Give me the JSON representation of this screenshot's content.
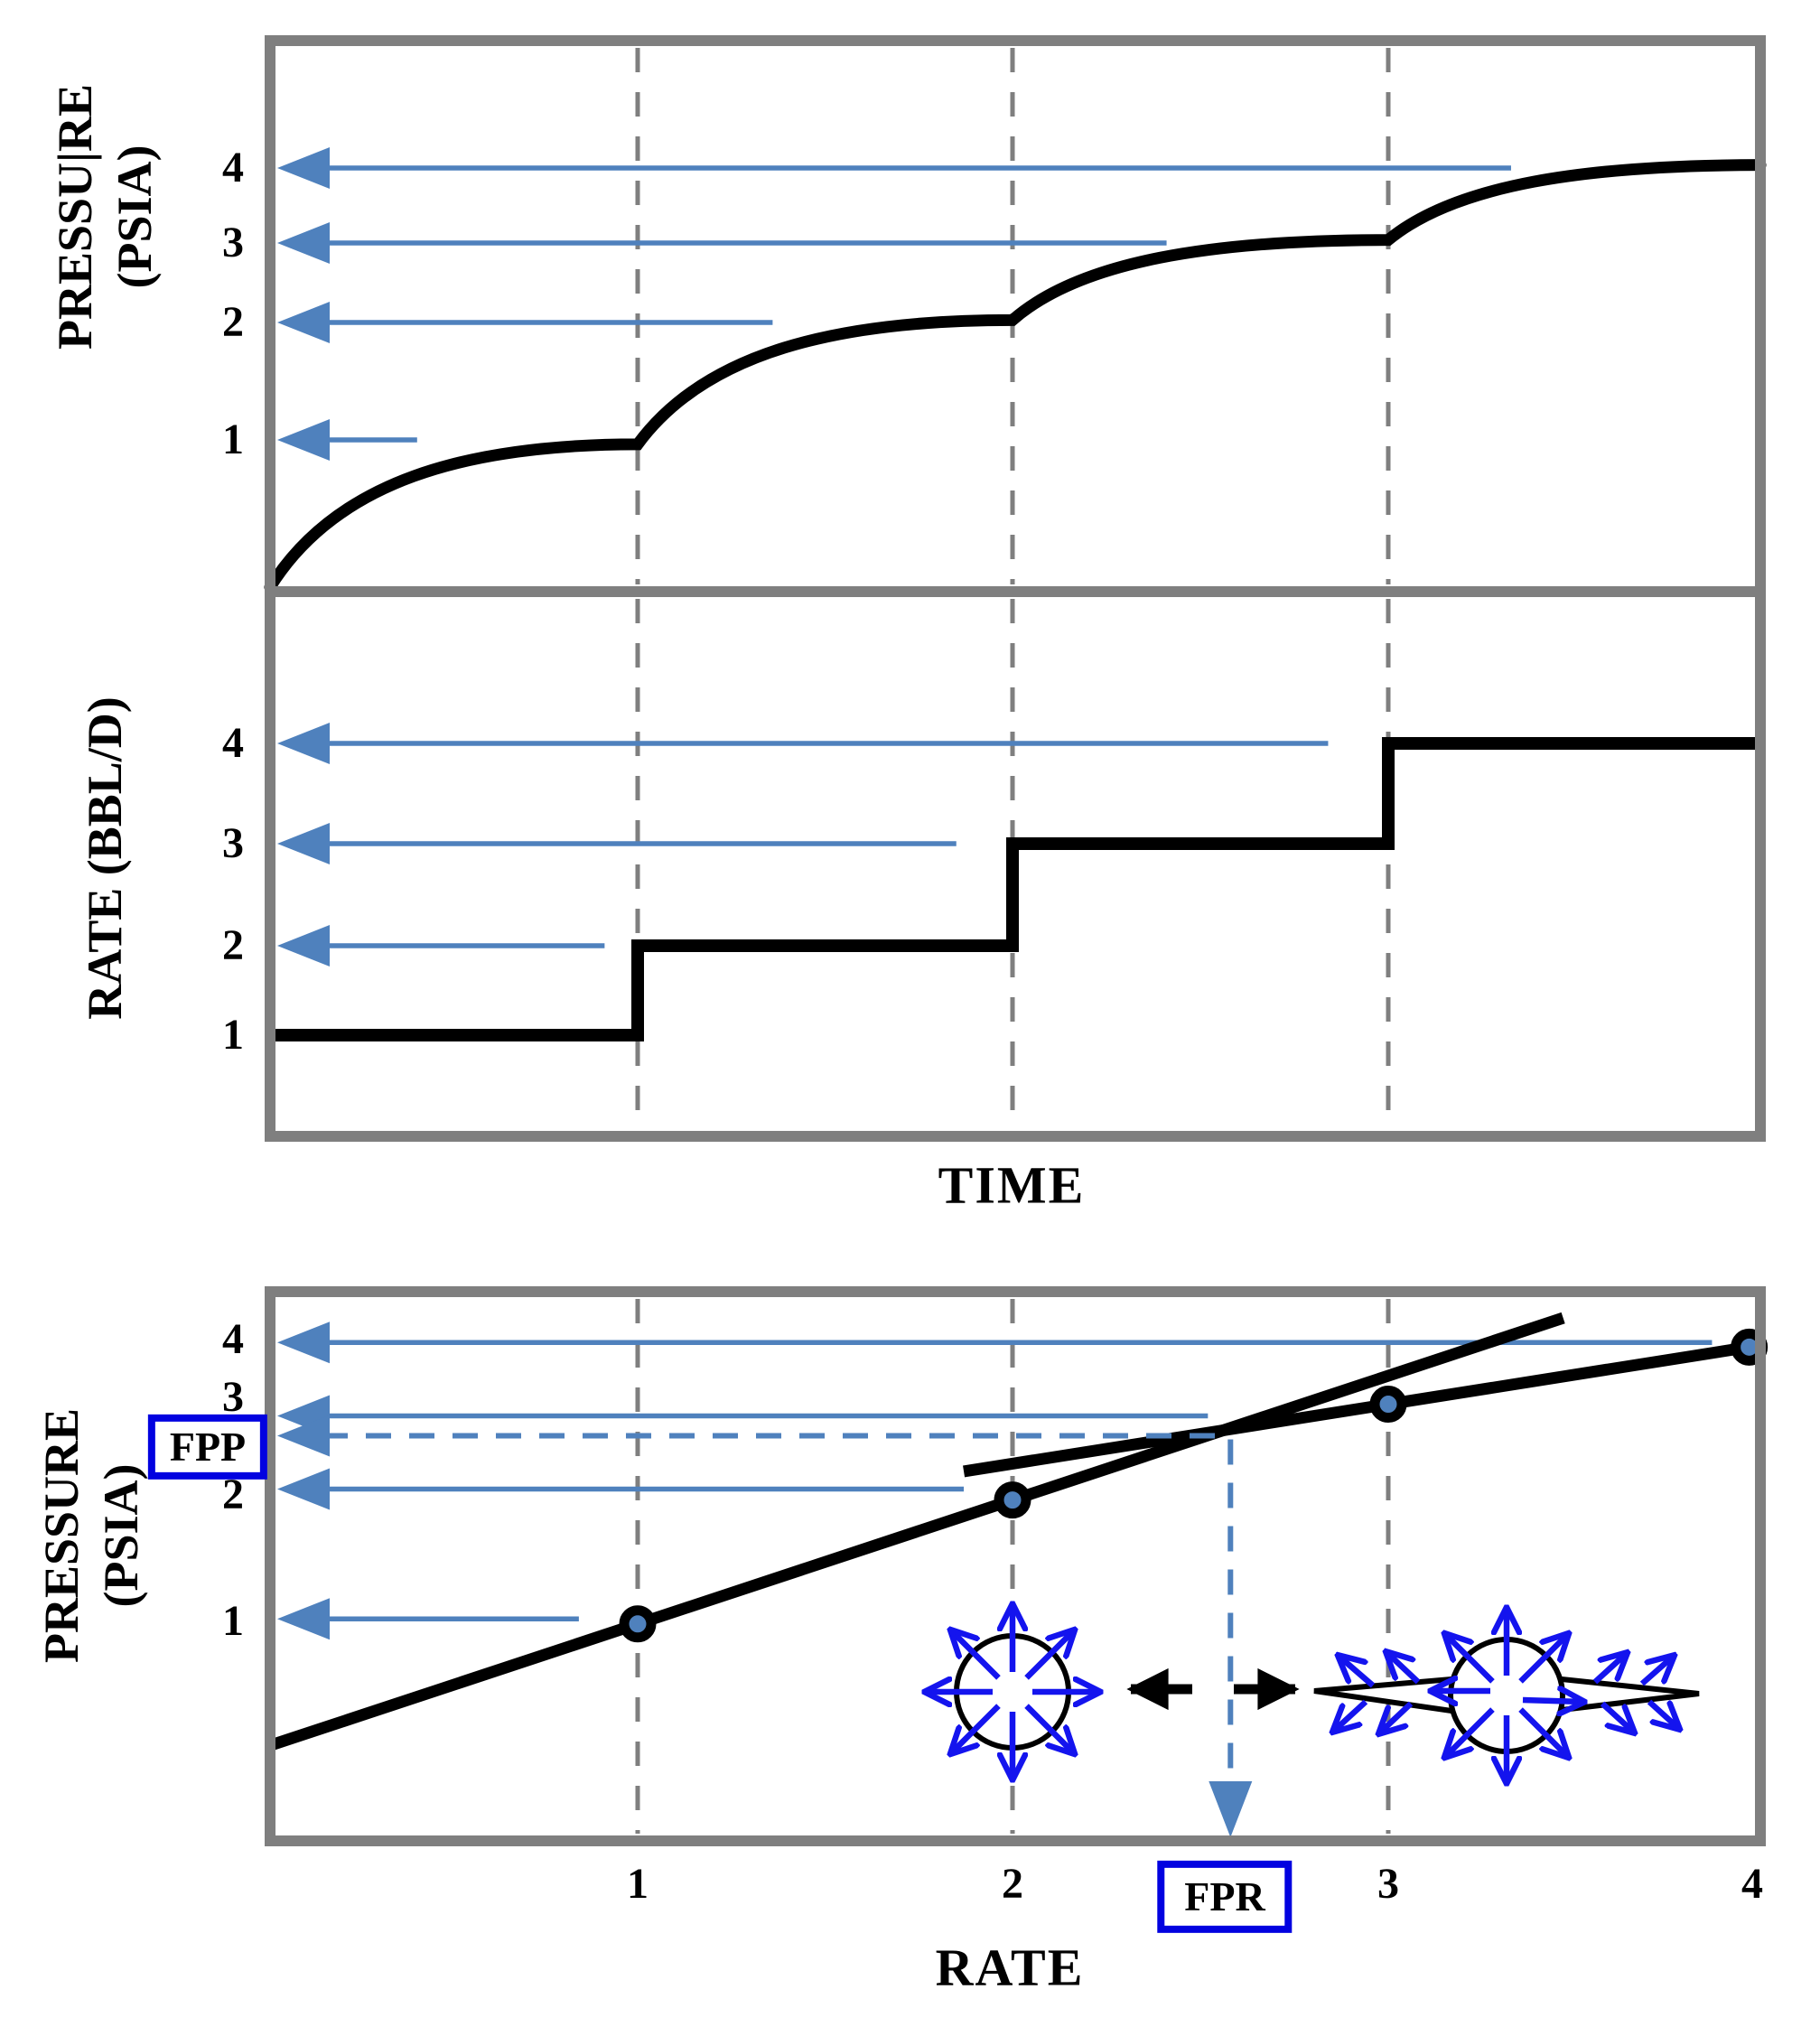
{
  "figure": {
    "background": "#ffffff",
    "frame_gray": "#7f7f7f",
    "arrow_blue": "#4f81bd",
    "accent_blue": "#0202e0",
    "illustration_blue": "#1414ee",
    "ink": "#000000"
  },
  "labels": {
    "top_ylabel": "PRESSU|RE\n(PSIA)",
    "mid_ylabel": "RATE (BBL/D)",
    "bottom_ylabel": "PRESSURE\n(PSIA)",
    "time_xlabel": "TIME",
    "rate_xlabel": "RATE",
    "fpp": "FPP",
    "fpr": "FPR"
  },
  "illustrations": [
    {
      "name": "radial-flow-well-icon",
      "description_label": ""
    },
    {
      "name": "fractured-well-icon",
      "description_label": ""
    }
  ],
  "chart_data": [
    {
      "id": "pressure-vs-time",
      "type": "line",
      "title": "",
      "xlabel": "TIME",
      "ylabel": "PRESSURE (PSIA)",
      "xrange": [
        0,
        4
      ],
      "yticks": [
        1,
        2,
        3,
        4
      ],
      "xgridlines": [
        1,
        2,
        3
      ],
      "grid": "dashed-vertical",
      "curve_plateaus": [
        [
          0,
          0
        ],
        [
          1,
          0.97
        ],
        [
          2,
          2.03
        ],
        [
          3,
          3.04
        ],
        [
          4,
          4.04
        ]
      ],
      "axis_arrows": [
        {
          "value": 4,
          "end_x": 3.33
        },
        {
          "value": 3,
          "end_x": 2.41
        },
        {
          "value": 2,
          "end_x": 1.36
        },
        {
          "value": 1,
          "end_x": 0.4
        }
      ]
    },
    {
      "id": "rate-vs-time",
      "type": "step",
      "title": "",
      "xlabel": "TIME",
      "ylabel": "RATE (BBL/D)",
      "xrange": [
        0,
        4
      ],
      "yticks": [
        1,
        2,
        3,
        4
      ],
      "xgridlines": [
        1,
        2,
        3
      ],
      "grid": "dashed-vertical",
      "steps": [
        [
          0,
          1
        ],
        [
          1,
          2
        ],
        [
          2,
          3
        ],
        [
          3,
          4
        ]
      ],
      "axis_arrows": [
        {
          "value": 4,
          "end_x": 2.84
        },
        {
          "value": 3,
          "end_x": 1.85
        },
        {
          "value": 2,
          "end_x": 0.91
        }
      ]
    },
    {
      "id": "pressure-vs-rate",
      "type": "scatter",
      "title": "",
      "xlabel": "RATE",
      "ylabel": "PRESSURE (PSIA)",
      "xticks": [
        1,
        2,
        3,
        4
      ],
      "yticks": [
        1,
        2,
        3,
        4
      ],
      "points": [
        [
          1,
          0.98
        ],
        [
          2,
          1.96
        ],
        [
          3,
          2.93
        ],
        [
          3.97,
          3.87
        ]
      ],
      "lines": [
        {
          "name": "matrix-trend",
          "through_points": [
            0,
            1
          ],
          "extend_x": [
            0.0,
            3.47
          ]
        },
        {
          "name": "fracture-trend",
          "through_points": [
            2,
            3
          ],
          "extend_x": [
            1.87,
            3.97
          ]
        }
      ],
      "axis_arrows": [
        {
          "value": 3.95,
          "end_x": 3.87
        },
        {
          "value": 2.81,
          "end_x": 2.52
        },
        {
          "value": 2.06,
          "end_x": 1.87
        },
        {
          "value": 1.02,
          "end_x": 0.84
        }
      ],
      "fpp": {
        "label": "FPP",
        "psia": 2.6
      },
      "fpr": {
        "label": "FPR",
        "rate": 2.55
      }
    }
  ]
}
